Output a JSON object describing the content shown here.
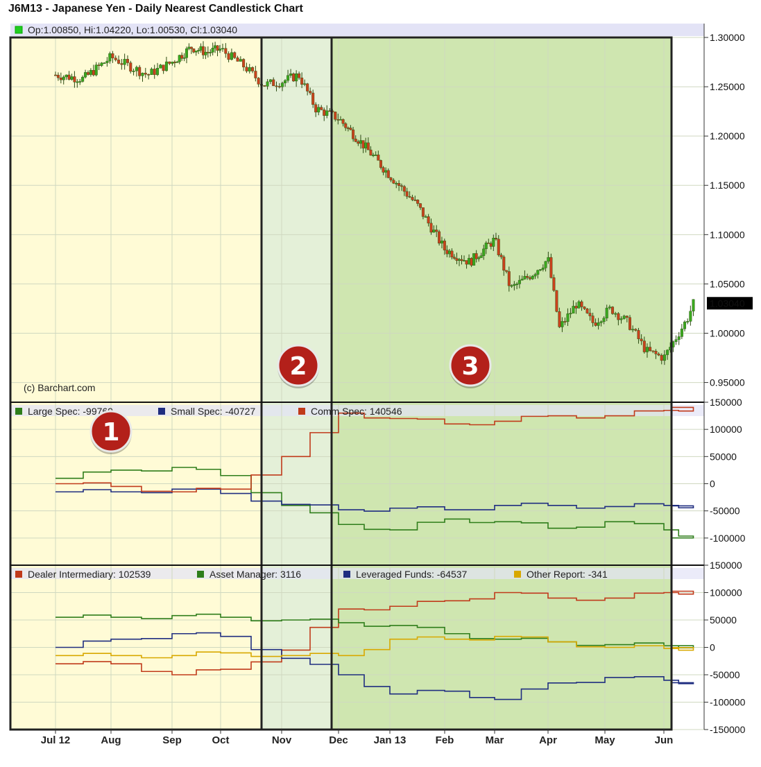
{
  "chart_data": [
    {
      "type": "candlestick",
      "title": "J6M13 - Japanese Yen - Daily Nearest Candlestick Chart",
      "ohlc_label": "Op:1.00850, Hi:1.04220, Lo:1.00530, Cl:1.03040",
      "last_price": "1.03040",
      "watermark": "(c) Barchart.com",
      "y_ticks": [
        "1.30000",
        "1.25000",
        "1.20000",
        "1.15000",
        "1.10000",
        "1.05000",
        "1.00000",
        "0.95000"
      ],
      "ylim": [
        0.93,
        1.3
      ],
      "x_ticks": [
        "Jul 12",
        "Aug",
        "Sep",
        "Oct",
        "Nov",
        "Dec",
        "Jan 13",
        "Feb",
        "Mar",
        "Apr",
        "May",
        "Jun"
      ],
      "close_path": [
        {
          "t": 0.0,
          "close": 1.262
        },
        {
          "t": 0.5,
          "close": 1.258
        },
        {
          "t": 1.0,
          "close": 1.28
        },
        {
          "t": 1.6,
          "close": 1.262
        },
        {
          "t": 2.0,
          "close": 1.275
        },
        {
          "t": 2.4,
          "close": 1.29
        },
        {
          "t": 2.7,
          "close": 1.285
        },
        {
          "t": 3.0,
          "close": 1.288
        },
        {
          "t": 3.4,
          "close": 1.27
        },
        {
          "t": 3.7,
          "close": 1.252
        },
        {
          "t": 4.0,
          "close": 1.255
        },
        {
          "t": 4.3,
          "close": 1.262
        },
        {
          "t": 4.6,
          "close": 1.228
        },
        {
          "t": 5.0,
          "close": 1.218
        },
        {
          "t": 5.5,
          "close": 1.19
        },
        {
          "t": 6.0,
          "close": 1.16
        },
        {
          "t": 6.5,
          "close": 1.13
        },
        {
          "t": 7.0,
          "close": 1.085
        },
        {
          "t": 7.5,
          "close": 1.072
        },
        {
          "t": 8.0,
          "close": 1.095
        },
        {
          "t": 8.3,
          "close": 1.045
        },
        {
          "t": 8.7,
          "close": 1.06
        },
        {
          "t": 9.0,
          "close": 1.075
        },
        {
          "t": 9.2,
          "close": 1.005
        },
        {
          "t": 9.5,
          "close": 1.03
        },
        {
          "t": 9.8,
          "close": 1.01
        },
        {
          "t": 10.1,
          "close": 1.025
        },
        {
          "t": 10.4,
          "close": 1.01
        },
        {
          "t": 10.7,
          "close": 0.982
        },
        {
          "t": 11.0,
          "close": 0.975
        },
        {
          "t": 11.4,
          "close": 1.015
        },
        {
          "t": 11.5,
          "close": 1.03
        }
      ]
    },
    {
      "type": "line",
      "step": true,
      "y_ticks": [
        "150000",
        "100000",
        "50000",
        "0",
        "-50000",
        "-100000"
      ],
      "ylim": [
        -150000,
        150000
      ],
      "series": [
        {
          "name": "Large Spec",
          "label": "Large Spec: -99769",
          "color": "#2e7d1a",
          "points": [
            [
              0,
              10000
            ],
            [
              1,
              25000
            ],
            [
              2,
              30000
            ],
            [
              3,
              15000
            ],
            [
              4,
              -40000
            ],
            [
              5,
              -75000
            ],
            [
              6,
              -85000
            ],
            [
              7,
              -65000
            ],
            [
              8,
              -70000
            ],
            [
              9,
              -82000
            ],
            [
              10,
              -70000
            ],
            [
              11,
              -85000
            ],
            [
              11.5,
              -99769
            ]
          ]
        },
        {
          "name": "Small Spec",
          "label": "Small Spec: -40727",
          "color": "#1f2d80",
          "points": [
            [
              0,
              -15000
            ],
            [
              1,
              -15000
            ],
            [
              2,
              -10000
            ],
            [
              3,
              -18000
            ],
            [
              4,
              -38000
            ],
            [
              5,
              -48000
            ],
            [
              6,
              -45000
            ],
            [
              7,
              -48000
            ],
            [
              8,
              -40000
            ],
            [
              9,
              -40000
            ],
            [
              10,
              -42000
            ],
            [
              11,
              -40000
            ],
            [
              11.5,
              -40727
            ]
          ]
        },
        {
          "name": "Comm Spec",
          "label": "Comm Spec: 140546",
          "color": "#c03a1a",
          "points": [
            [
              0,
              0
            ],
            [
              1,
              -5000
            ],
            [
              2,
              -15000
            ],
            [
              3,
              -10000
            ],
            [
              4,
              50000
            ],
            [
              5,
              130000
            ],
            [
              6,
              120000
            ],
            [
              7,
              110000
            ],
            [
              8,
              115000
            ],
            [
              9,
              125000
            ],
            [
              10,
              125000
            ],
            [
              11,
              135000
            ],
            [
              11.5,
              140546
            ]
          ]
        }
      ]
    },
    {
      "type": "line",
      "step": true,
      "y_ticks": [
        "150000",
        "100000",
        "50000",
        "0",
        "-50000",
        "-100000",
        "-150000"
      ],
      "ylim": [
        -150000,
        150000
      ],
      "series": [
        {
          "name": "Dealer Intermediary",
          "label": "Dealer Intermediary: 102539",
          "color": "#c03a1a",
          "points": [
            [
              0,
              -30000
            ],
            [
              1,
              -30000
            ],
            [
              2,
              -50000
            ],
            [
              3,
              -40000
            ],
            [
              4,
              -5000
            ],
            [
              5,
              70000
            ],
            [
              6,
              75000
            ],
            [
              7,
              85000
            ],
            [
              8,
              100000
            ],
            [
              9,
              90000
            ],
            [
              10,
              90000
            ],
            [
              11,
              100000
            ],
            [
              11.5,
              102539
            ]
          ]
        },
        {
          "name": "Asset Manager",
          "label": "Asset Manager: 3116",
          "color": "#2e7d1a",
          "points": [
            [
              0,
              55000
            ],
            [
              1,
              55000
            ],
            [
              2,
              58000
            ],
            [
              3,
              55000
            ],
            [
              4,
              50000
            ],
            [
              5,
              45000
            ],
            [
              6,
              40000
            ],
            [
              7,
              25000
            ],
            [
              8,
              15000
            ],
            [
              9,
              10000
            ],
            [
              10,
              5000
            ],
            [
              11,
              3000
            ],
            [
              11.5,
              3116
            ]
          ]
        },
        {
          "name": "Leveraged Funds",
          "label": "Leveraged Funds: -64537",
          "color": "#1f2d80",
          "points": [
            [
              0,
              0
            ],
            [
              1,
              15000
            ],
            [
              2,
              25000
            ],
            [
              3,
              20000
            ],
            [
              4,
              -20000
            ],
            [
              5,
              -50000
            ],
            [
              6,
              -85000
            ],
            [
              7,
              -80000
            ],
            [
              8,
              -95000
            ],
            [
              9,
              -65000
            ],
            [
              10,
              -55000
            ],
            [
              11,
              -60000
            ],
            [
              11.5,
              -64537
            ]
          ]
        },
        {
          "name": "Other Report",
          "label": "Other Report: -341",
          "color": "#d8a800",
          "points": [
            [
              0,
              -15000
            ],
            [
              1,
              -15000
            ],
            [
              2,
              -15000
            ],
            [
              3,
              -10000
            ],
            [
              4,
              -15000
            ],
            [
              5,
              -15000
            ],
            [
              6,
              15000
            ],
            [
              7,
              15000
            ],
            [
              8,
              20000
            ],
            [
              9,
              10000
            ],
            [
              10,
              0
            ],
            [
              11,
              -2000
            ],
            [
              11.5,
              -341
            ]
          ]
        }
      ]
    }
  ],
  "regions": [
    {
      "label": "1",
      "fill": "#fffbd6"
    },
    {
      "label": "2",
      "fill": "#e4f0d8"
    },
    {
      "label": "3",
      "fill": "#cfe6b0"
    }
  ]
}
